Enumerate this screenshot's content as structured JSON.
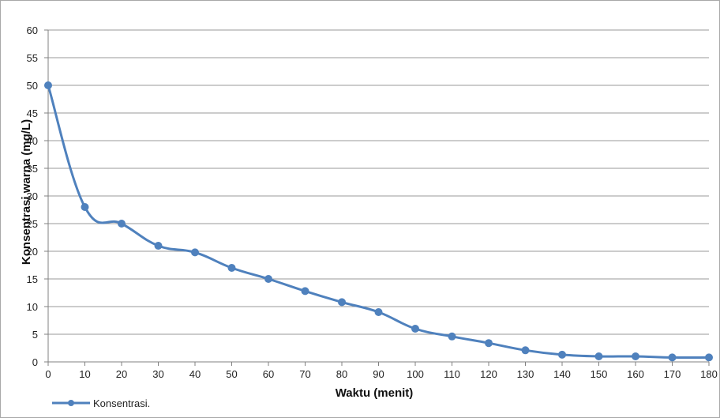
{
  "chart_data": {
    "type": "line",
    "xlabel": "Waktu (menit)",
    "ylabel": "Konsentrasi warna (mg/L)",
    "xlim": [
      0,
      180
    ],
    "ylim": [
      0,
      60
    ],
    "x_ticks": [
      0,
      10,
      20,
      30,
      40,
      50,
      60,
      70,
      80,
      90,
      100,
      110,
      120,
      130,
      140,
      150,
      160,
      170,
      180
    ],
    "y_ticks": [
      0,
      5,
      10,
      15,
      20,
      25,
      30,
      35,
      40,
      45,
      50,
      55,
      60
    ],
    "grid": "horizontal",
    "legend_position": "bottom-left",
    "smoothed": true,
    "series": [
      {
        "name": "Konsentrasi.",
        "color": "#4f81bd",
        "x": [
          0,
          10,
          20,
          30,
          40,
          50,
          60,
          70,
          80,
          90,
          100,
          110,
          120,
          130,
          140,
          150,
          160,
          170,
          180
        ],
        "y": [
          50,
          28,
          25,
          21,
          19.8,
          17,
          15,
          12.8,
          10.8,
          9,
          6,
          4.6,
          3.4,
          2.1,
          1.3,
          1.0,
          1.0,
          0.8,
          0.8
        ]
      }
    ]
  },
  "colors": {
    "grid": "#9a9a9a",
    "axis": "#808080",
    "frame": "#a8a8a8"
  }
}
